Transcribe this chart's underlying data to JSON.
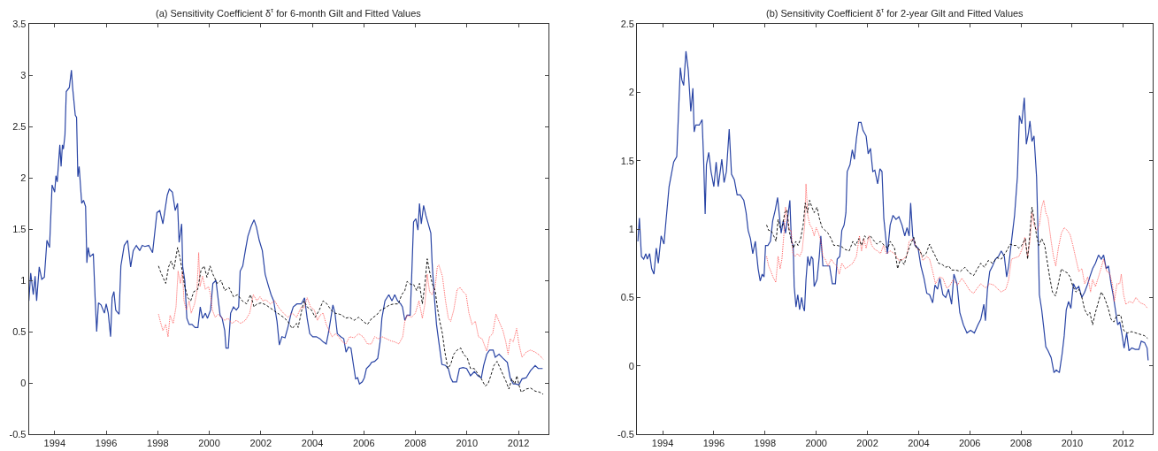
{
  "chart_data": [
    {
      "type": "line",
      "title": "(a) Sensitivity Coefficient δ$^{τ}$ for 6-month Gilt and Fitted Values",
      "xlim": [
        1993,
        2013.15
      ],
      "xticks": [
        1994,
        1996,
        1998,
        2000,
        2002,
        2004,
        2006,
        2008,
        2010,
        2012
      ],
      "ylim": [
        -0.5,
        3.5
      ],
      "yticks": [
        -0.5,
        0,
        0.5,
        1,
        1.5,
        2,
        2.5,
        3,
        3.5
      ],
      "grid": false,
      "series": [
        {
          "color": "#2a45a5",
          "line_style": "solid",
          "x": [
            1993.0,
            1993.07,
            1993.17,
            1993.24,
            1993.3,
            1993.4,
            1993.5,
            1993.6,
            1993.7,
            1993.8,
            1993.9,
            1994.0,
            1994.05,
            1994.1,
            1994.2,
            1994.25,
            1994.3,
            1994.34,
            1994.4,
            1994.45,
            1994.57,
            1994.65,
            1994.7,
            1994.8,
            1994.85,
            1994.9,
            1994.95,
            1995.05,
            1995.12,
            1995.2,
            1995.25,
            1995.3,
            1995.37,
            1995.5,
            1995.57,
            1995.63,
            1995.7,
            1995.8,
            1995.93,
            1996.0,
            1996.08,
            1996.17,
            1996.23,
            1996.3,
            1996.37,
            1996.5,
            1996.57,
            1996.7,
            1996.83,
            1996.95,
            1997.05,
            1997.17,
            1997.3,
            1997.4,
            1997.5,
            1997.65,
            1997.8,
            1997.87,
            1997.97,
            1998.08,
            1998.2,
            1998.37,
            1998.45,
            1998.57,
            1998.68,
            1998.77,
            1998.83,
            1998.88,
            1998.93,
            1998.97,
            1999.05,
            1999.13,
            1999.22,
            1999.33,
            1999.45,
            1999.56,
            1999.65,
            1999.74,
            1999.85,
            1999.93,
            2000.05,
            2000.14,
            2000.26,
            2000.34,
            2000.42,
            2000.5,
            2000.6,
            2000.65,
            2000.74,
            2000.83,
            2000.94,
            2001.05,
            2001.14,
            2001.2,
            2001.3,
            2001.4,
            2001.5,
            2001.63,
            2001.74,
            2001.83,
            2001.94,
            2002.06,
            2002.17,
            2002.28,
            2002.4,
            2002.5,
            2002.63,
            2002.72,
            2002.82,
            2002.94,
            2003.05,
            2003.17,
            2003.26,
            2003.4,
            2003.57,
            2003.7,
            2003.8,
            2003.9,
            2004.02,
            2004.16,
            2004.3,
            2004.42,
            2004.54,
            2004.62,
            2004.7,
            2004.8,
            2004.88,
            2004.97,
            2005.1,
            2005.22,
            2005.31,
            2005.4,
            2005.5,
            2005.6,
            2005.68,
            2005.76,
            2005.83,
            2005.94,
            2006.02,
            2006.1,
            2006.22,
            2006.3,
            2006.42,
            2006.54,
            2006.63,
            2006.7,
            2006.82,
            2006.97,
            2007.09,
            2007.2,
            2007.31,
            2007.43,
            2007.5,
            2007.59,
            2007.68,
            2007.8,
            2007.86,
            2007.93,
            2008.02,
            2008.1,
            2008.16,
            2008.23,
            2008.32,
            2008.41,
            2008.5,
            2008.6,
            2008.65,
            2008.73,
            2008.82,
            2008.91,
            2009.03,
            2009.17,
            2009.28,
            2009.37,
            2009.45,
            2009.6,
            2009.71,
            2009.85,
            2009.99,
            2010.14,
            2010.29,
            2010.42,
            2010.56,
            2010.65,
            2010.77,
            2010.88,
            2011.02,
            2011.1,
            2011.25,
            2011.4,
            2011.57,
            2011.68,
            2011.8,
            2011.9,
            2012.02,
            2012.14,
            2012.3,
            2012.47,
            2012.65,
            2012.77,
            2012.94
          ],
          "values": [
            0.8,
            1.07,
            0.86,
            1.04,
            0.8,
            1.13,
            1.01,
            1.03,
            1.39,
            1.32,
            1.93,
            1.86,
            2.02,
            1.96,
            2.32,
            2.11,
            2.32,
            2.28,
            2.42,
            2.84,
            2.88,
            3.05,
            2.87,
            2.61,
            2.59,
            2.01,
            2.11,
            1.75,
            1.78,
            1.72,
            1.17,
            1.32,
            1.23,
            1.26,
            0.83,
            0.5,
            0.78,
            0.76,
            0.68,
            0.77,
            0.68,
            0.45,
            0.83,
            0.89,
            0.71,
            0.67,
            1.14,
            1.34,
            1.39,
            1.13,
            1.29,
            1.34,
            1.29,
            1.34,
            1.33,
            1.34,
            1.27,
            1.43,
            1.66,
            1.68,
            1.55,
            1.83,
            1.89,
            1.86,
            1.68,
            1.75,
            1.37,
            1.46,
            1.55,
            1.13,
            1.0,
            0.63,
            0.57,
            0.57,
            0.54,
            0.54,
            0.74,
            0.63,
            0.68,
            0.63,
            0.71,
            0.97,
            1.0,
            0.83,
            0.66,
            0.63,
            0.51,
            0.34,
            0.34,
            0.68,
            0.74,
            0.71,
            0.74,
            1.09,
            1.14,
            1.29,
            1.43,
            1.53,
            1.59,
            1.52,
            1.39,
            1.29,
            1.06,
            0.96,
            0.86,
            0.8,
            0.6,
            0.37,
            0.45,
            0.44,
            0.54,
            0.67,
            0.74,
            0.77,
            0.77,
            0.83,
            0.63,
            0.48,
            0.45,
            0.45,
            0.43,
            0.4,
            0.38,
            0.48,
            0.6,
            0.76,
            0.68,
            0.48,
            0.45,
            0.43,
            0.3,
            0.35,
            0.34,
            0.17,
            0.04,
            0.05,
            -0.01,
            0.01,
            0.05,
            0.14,
            0.17,
            0.2,
            0.21,
            0.24,
            0.4,
            0.63,
            0.8,
            0.86,
            0.8,
            0.86,
            0.8,
            0.77,
            0.74,
            0.61,
            0.66,
            0.66,
            1.06,
            1.57,
            1.6,
            1.49,
            1.75,
            1.55,
            1.73,
            1.63,
            1.55,
            1.46,
            1.17,
            0.86,
            0.57,
            0.4,
            0.18,
            0.17,
            0.14,
            0.05,
            0.01,
            0.01,
            0.14,
            0.15,
            0.14,
            0.07,
            0.11,
            0.07,
            0.05,
            0.17,
            0.28,
            0.32,
            0.32,
            0.25,
            0.28,
            0.24,
            0.2,
            0.05,
            -0.01,
            -0.01,
            -0.02,
            0.04,
            0.05,
            0.12,
            0.17,
            0.14,
            0.14
          ]
        },
        {
          "color": "#ff4d4d",
          "line_style": "dotted",
          "x": [
            1998.03,
            1998.1,
            1998.2,
            1998.31,
            1998.4,
            1998.48,
            1998.6,
            1998.71,
            1998.79,
            1998.88,
            1998.96,
            1999.02,
            1999.11,
            1999.22,
            1999.3,
            1999.43,
            1999.52,
            1999.59,
            1999.64,
            1999.74,
            1999.85,
            1999.97,
            2000.05,
            2000.12,
            2000.23,
            2000.35,
            2000.46,
            2000.6,
            2000.73,
            2000.88,
            2001.05,
            2001.22,
            2001.4,
            2001.57,
            2001.71,
            2001.85,
            2001.97,
            2002.08,
            2002.2,
            2002.37,
            2002.54,
            2002.71,
            2002.88,
            2003.05,
            2003.22,
            2003.39,
            2003.57,
            2003.68,
            2003.8,
            2003.93,
            2004.08,
            2004.2,
            2004.3,
            2004.42,
            2004.54,
            2004.65,
            2004.77,
            2004.91,
            2005.05,
            2005.17,
            2005.3,
            2005.45,
            2005.62,
            2005.8,
            2005.97,
            2006.14,
            2006.29,
            2006.42,
            2006.56,
            2006.71,
            2006.88,
            2007.05,
            2007.2,
            2007.36,
            2007.51,
            2007.59,
            2007.68,
            2007.85,
            2008.0,
            2008.14,
            2008.27,
            2008.37,
            2008.46,
            2008.55,
            2008.65,
            2008.77,
            2008.85,
            2008.91,
            2009.05,
            2009.17,
            2009.28,
            2009.37,
            2009.49,
            2009.62,
            2009.74,
            2009.85,
            2009.97,
            2010.08,
            2010.2,
            2010.33,
            2010.45,
            2010.59,
            2010.77,
            2010.88,
            2011.0,
            2011.13,
            2011.28,
            2011.4,
            2011.51,
            2011.6,
            2011.68,
            2011.8,
            2011.93,
            2012.02,
            2012.14,
            2012.3,
            2012.47,
            2012.65,
            2012.82,
            2012.96
          ],
          "values": [
            0.67,
            0.6,
            0.51,
            0.57,
            0.45,
            0.66,
            0.58,
            0.74,
            1.09,
            0.97,
            1.09,
            0.8,
            0.71,
            0.8,
            0.68,
            0.77,
            0.89,
            1.27,
            0.94,
            1.04,
            0.91,
            0.94,
            0.86,
            0.71,
            0.64,
            0.67,
            0.64,
            0.61,
            0.63,
            0.58,
            0.61,
            0.58,
            0.61,
            0.68,
            0.86,
            0.8,
            0.84,
            0.8,
            0.81,
            0.77,
            0.8,
            0.73,
            0.68,
            0.64,
            0.68,
            0.64,
            0.74,
            0.73,
            0.83,
            0.74,
            0.71,
            0.61,
            0.66,
            0.68,
            0.57,
            0.51,
            0.45,
            0.48,
            0.44,
            0.4,
            0.38,
            0.45,
            0.44,
            0.48,
            0.45,
            0.38,
            0.38,
            0.45,
            0.43,
            0.45,
            0.43,
            0.41,
            0.4,
            0.38,
            0.45,
            0.6,
            0.66,
            0.64,
            0.68,
            0.8,
            0.63,
            0.77,
            1.06,
            0.89,
            0.86,
            0.94,
            1.13,
            1.15,
            1.04,
            0.8,
            0.63,
            0.6,
            0.71,
            0.91,
            0.93,
            0.89,
            0.86,
            0.68,
            0.57,
            0.6,
            0.45,
            0.43,
            0.31,
            0.45,
            0.48,
            0.67,
            0.58,
            0.51,
            0.4,
            0.28,
            0.43,
            0.4,
            0.53,
            0.38,
            0.25,
            0.3,
            0.32,
            0.3,
            0.27,
            0.23
          ]
        },
        {
          "color": "#000000",
          "line_style": "dashed",
          "x": [
            1998.03,
            1998.1,
            1998.2,
            1998.31,
            1998.42,
            1998.52,
            1998.63,
            1998.77,
            1998.88,
            1998.97,
            1999.05,
            1999.17,
            1999.28,
            1999.4,
            1999.55,
            1999.68,
            1999.8,
            1999.91,
            2000.03,
            2000.14,
            2000.31,
            2000.46,
            2000.6,
            2000.77,
            2000.94,
            2001.1,
            2001.28,
            2001.45,
            2001.6,
            2001.74,
            2001.85,
            2002.02,
            2002.2,
            2002.37,
            2002.54,
            2002.71,
            2002.88,
            2003.05,
            2003.22,
            2003.39,
            2003.45,
            2003.59,
            2003.68,
            2003.8,
            2003.97,
            2004.11,
            2004.27,
            2004.42,
            2004.57,
            2004.73,
            2004.88,
            2005.05,
            2005.17,
            2005.28,
            2005.45,
            2005.62,
            2005.8,
            2005.97,
            2006.14,
            2006.31,
            2006.49,
            2006.65,
            2006.82,
            2007.0,
            2007.17,
            2007.34,
            2007.47,
            2007.59,
            2007.68,
            2007.82,
            2007.93,
            2008.05,
            2008.16,
            2008.27,
            2008.37,
            2008.46,
            2008.54,
            2008.65,
            2008.77,
            2008.85,
            2008.94,
            2009.05,
            2009.14,
            2009.26,
            2009.37,
            2009.49,
            2009.62,
            2009.76,
            2009.87,
            2010.02,
            2010.14,
            2010.29,
            2010.42,
            2010.56,
            2010.71,
            2010.82,
            2010.94,
            2011.05,
            2011.17,
            2011.28,
            2011.4,
            2011.51,
            2011.63,
            2011.74,
            2011.86,
            2011.94,
            2012.02,
            2012.11,
            2012.3,
            2012.47,
            2012.65,
            2012.82,
            2012.96
          ],
          "values": [
            1.14,
            1.09,
            1.03,
            0.97,
            1.13,
            1.19,
            1.11,
            1.32,
            1.2,
            1.06,
            0.94,
            0.83,
            0.8,
            0.89,
            0.91,
            1.1,
            1.14,
            1.03,
            1.14,
            1.06,
            0.97,
            1.0,
            0.9,
            0.93,
            0.84,
            0.86,
            0.8,
            0.77,
            0.86,
            0.74,
            0.77,
            0.78,
            0.76,
            0.73,
            0.7,
            0.67,
            0.64,
            0.6,
            0.53,
            0.58,
            0.54,
            0.71,
            0.8,
            0.74,
            0.71,
            0.64,
            0.71,
            0.8,
            0.77,
            0.71,
            0.68,
            0.67,
            0.66,
            0.63,
            0.64,
            0.61,
            0.64,
            0.6,
            0.57,
            0.63,
            0.66,
            0.71,
            0.73,
            0.76,
            0.77,
            0.77,
            0.86,
            0.9,
            0.99,
            0.96,
            0.96,
            0.9,
            0.97,
            0.77,
            0.96,
            1.21,
            1.1,
            0.97,
            0.9,
            0.74,
            0.61,
            0.48,
            0.31,
            0.14,
            0.18,
            0.28,
            0.32,
            0.34,
            0.28,
            0.24,
            0.14,
            0.14,
            0.09,
            0.04,
            -0.03,
            -0.01,
            0.08,
            0.17,
            0.21,
            0.15,
            0.08,
            0.02,
            -0.06,
            0.04,
            -0.01,
            0.07,
            -0.02,
            -0.09,
            -0.06,
            -0.05,
            -0.08,
            -0.09,
            -0.11
          ]
        }
      ]
    },
    {
      "type": "line",
      "title": "(b) Sensitivity Coefficient δ$^{τ}$ for 2-year Gilt and Fitted Values",
      "xlim": [
        1993,
        2013.15
      ],
      "xticks": [
        1994,
        1996,
        1998,
        2000,
        2002,
        2004,
        2006,
        2008,
        2010,
        2012
      ],
      "ylim": [
        -0.5,
        2.5
      ],
      "yticks": [
        -0.5,
        0,
        0.5,
        1,
        1.5,
        2,
        2.5
      ],
      "grid": false,
      "series": [
        {
          "color": "#2a45a5",
          "line_style": "solid",
          "x": [
            1993.03,
            1993.09,
            1993.17,
            1993.26,
            1993.34,
            1993.4,
            1993.49,
            1993.57,
            1993.66,
            1993.75,
            1993.83,
            1993.94,
            1994.05,
            1994.13,
            1994.25,
            1994.34,
            1994.43,
            1994.55,
            1994.63,
            1994.69,
            1994.75,
            1994.82,
            1994.91,
            1995.0,
            1995.1,
            1995.18,
            1995.23,
            1995.29,
            1995.43,
            1995.54,
            1995.6,
            1995.66,
            1995.71,
            1995.8,
            1995.89,
            1996.0,
            1996.09,
            1996.17,
            1996.31,
            1996.4,
            1996.49,
            1996.6,
            1996.69,
            1996.8,
            1996.91,
            1997.03,
            1997.17,
            1997.26,
            1997.34,
            1997.43,
            1997.52,
            1997.62,
            1997.73,
            1997.81,
            1997.89,
            1997.96,
            1998.02,
            1998.11,
            1998.21,
            1998.3,
            1998.4,
            1998.49,
            1998.57,
            1998.63,
            1998.71,
            1998.8,
            1998.91,
            1998.97,
            1999.03,
            1999.1,
            1999.14,
            1999.21,
            1999.28,
            1999.35,
            1999.43,
            1999.49,
            1999.54,
            1999.6,
            1999.67,
            1999.74,
            1999.81,
            1999.87,
            1999.92,
            2000.03,
            2000.12,
            2000.18,
            2000.26,
            2000.35,
            2000.52,
            2000.63,
            2000.75,
            2000.82,
            2000.92,
            2001.0,
            2001.09,
            2001.16,
            2001.21,
            2001.32,
            2001.41,
            2001.49,
            2001.57,
            2001.66,
            2001.75,
            2001.83,
            2001.95,
            2002.03,
            2002.12,
            2002.21,
            2002.29,
            2002.4,
            2002.49,
            2002.57,
            2002.64,
            2002.71,
            2002.78,
            2002.89,
            2003.0,
            2003.12,
            2003.23,
            2003.35,
            2003.46,
            2003.55,
            2003.63,
            2003.69,
            2003.77,
            2003.86,
            2003.98,
            2004.09,
            2004.21,
            2004.32,
            2004.43,
            2004.55,
            2004.64,
            2004.74,
            2004.83,
            2004.95,
            2005.06,
            2005.17,
            2005.29,
            2005.38,
            2005.5,
            2005.61,
            2005.75,
            2005.89,
            2006.03,
            2006.18,
            2006.32,
            2006.43,
            2006.55,
            2006.61,
            2006.69,
            2006.78,
            2006.89,
            2007.0,
            2007.12,
            2007.23,
            2007.35,
            2007.44,
            2007.52,
            2007.63,
            2007.75,
            2007.86,
            2007.94,
            2008.03,
            2008.13,
            2008.21,
            2008.29,
            2008.35,
            2008.43,
            2008.51,
            2008.61,
            2008.67,
            2008.72,
            2008.81,
            2008.89,
            2008.97,
            2009.06,
            2009.18,
            2009.29,
            2009.38,
            2009.5,
            2009.61,
            2009.69,
            2009.77,
            2009.86,
            2009.95,
            2010.05,
            2010.15,
            2010.26,
            2010.38,
            2010.49,
            2010.61,
            2010.69,
            2010.8,
            2010.91,
            2011.03,
            2011.14,
            2011.23,
            2011.33,
            2011.42,
            2011.52,
            2011.6,
            2011.69,
            2011.78,
            2011.86,
            2011.94,
            2012.03,
            2012.13,
            2012.22,
            2012.33,
            2012.47,
            2012.61,
            2012.7,
            2012.83,
            2012.93,
            2012.97
          ],
          "values": [
            0.91,
            1.08,
            0.8,
            0.78,
            0.82,
            0.78,
            0.82,
            0.71,
            0.67,
            0.86,
            0.75,
            0.95,
            0.89,
            1.06,
            1.31,
            1.4,
            1.49,
            1.53,
            1.9,
            2.18,
            2.09,
            2.05,
            2.3,
            2.16,
            1.86,
            2.03,
            1.71,
            1.76,
            1.76,
            1.8,
            1.51,
            1.11,
            1.47,
            1.56,
            1.42,
            1.31,
            1.49,
            1.31,
            1.51,
            1.34,
            1.42,
            1.73,
            1.4,
            1.36,
            1.25,
            1.25,
            1.21,
            1.12,
            0.99,
            0.93,
            0.82,
            0.91,
            0.71,
            0.62,
            0.67,
            0.65,
            0.88,
            0.88,
            0.91,
            1.06,
            1.14,
            1.23,
            1.08,
            0.97,
            1.06,
            0.97,
            1.12,
            1.21,
            0.91,
            0.88,
            0.58,
            0.43,
            0.52,
            0.41,
            0.5,
            0.43,
            0.4,
            0.63,
            0.8,
            0.73,
            0.8,
            0.78,
            0.58,
            0.63,
            0.8,
            0.95,
            0.73,
            0.73,
            0.73,
            0.6,
            0.6,
            0.78,
            0.8,
            0.99,
            1.03,
            1.12,
            1.42,
            1.47,
            1.58,
            1.51,
            1.66,
            1.78,
            1.78,
            1.72,
            1.68,
            1.55,
            1.59,
            1.42,
            1.43,
            1.33,
            1.44,
            1.42,
            1.08,
            0.95,
            0.82,
            1.03,
            1.1,
            1.07,
            1.09,
            1.03,
            0.95,
            1.01,
            0.95,
            1.19,
            0.95,
            0.88,
            0.86,
            0.73,
            0.64,
            0.53,
            0.52,
            0.46,
            0.59,
            0.56,
            0.64,
            0.52,
            0.5,
            0.56,
            0.45,
            0.67,
            0.6,
            0.39,
            0.3,
            0.24,
            0.26,
            0.24,
            0.3,
            0.34,
            0.45,
            0.33,
            0.56,
            0.69,
            0.73,
            0.78,
            0.8,
            0.84,
            0.8,
            0.65,
            0.73,
            0.91,
            1.1,
            1.38,
            1.83,
            1.77,
            1.96,
            1.62,
            1.7,
            1.79,
            1.64,
            1.68,
            1.38,
            0.95,
            0.52,
            0.41,
            0.28,
            0.14,
            0.11,
            0.06,
            -0.05,
            -0.03,
            -0.05,
            0.09,
            0.22,
            0.41,
            0.47,
            0.42,
            0.6,
            0.56,
            0.58,
            0.5,
            0.54,
            0.6,
            0.65,
            0.71,
            0.75,
            0.81,
            0.78,
            0.81,
            0.71,
            0.73,
            0.6,
            0.52,
            0.41,
            0.3,
            0.32,
            0.24,
            0.13,
            0.24,
            0.11,
            0.13,
            0.12,
            0.12,
            0.18,
            0.17,
            0.13,
            0.04
          ]
        },
        {
          "color": "#ff4d4d",
          "line_style": "dotted",
          "x": [
            1998.06,
            1998.14,
            1998.23,
            1998.31,
            1998.42,
            1998.51,
            1998.59,
            1998.66,
            1998.74,
            1998.8,
            1998.88,
            1998.95,
            1999.02,
            1999.09,
            1999.17,
            1999.26,
            1999.35,
            1999.45,
            1999.55,
            1999.6,
            1999.67,
            1999.75,
            1999.83,
            1999.92,
            2000.0,
            2000.09,
            2000.18,
            2000.26,
            2000.35,
            2000.46,
            2000.58,
            2000.69,
            2000.8,
            2000.9,
            2001.0,
            2001.14,
            2001.29,
            2001.43,
            2001.57,
            2001.69,
            2001.77,
            2001.86,
            2001.95,
            2002.06,
            2002.17,
            2002.29,
            2002.4,
            2002.51,
            2002.63,
            2002.74,
            2002.89,
            2003.06,
            2003.23,
            2003.41,
            2003.55,
            2003.63,
            2003.78,
            2003.92,
            2004.06,
            2004.17,
            2004.32,
            2004.43,
            2004.55,
            2004.66,
            2004.81,
            2004.95,
            2005.09,
            2005.2,
            2005.35,
            2005.52,
            2005.69,
            2005.84,
            2006.0,
            2006.15,
            2006.3,
            2006.43,
            2006.61,
            2006.78,
            2006.95,
            2007.1,
            2007.23,
            2007.41,
            2007.52,
            2007.63,
            2007.78,
            2007.92,
            2008.06,
            2008.15,
            2008.26,
            2008.35,
            2008.43,
            2008.51,
            2008.61,
            2008.72,
            2008.81,
            2008.89,
            2008.97,
            2009.06,
            2009.18,
            2009.27,
            2009.36,
            2009.46,
            2009.58,
            2009.69,
            2009.81,
            2009.92,
            2010.03,
            2010.15,
            2010.26,
            2010.38,
            2010.49,
            2010.61,
            2010.72,
            2010.8,
            2010.91,
            2011.03,
            2011.14,
            2011.23,
            2011.35,
            2011.46,
            2011.58,
            2011.65,
            2011.75,
            2011.86,
            2011.92,
            2012.01,
            2012.1,
            2012.24,
            2012.38,
            2012.49,
            2012.66,
            2012.81,
            2012.95
          ],
          "values": [
            0.8,
            0.73,
            0.69,
            0.65,
            0.61,
            0.8,
            0.71,
            0.78,
            0.97,
            1.16,
            1.06,
            0.99,
            0.99,
            0.82,
            0.8,
            0.82,
            0.8,
            0.84,
            1.03,
            1.33,
            1.1,
            1.03,
            1.01,
            0.95,
            1.01,
            0.97,
            0.91,
            0.8,
            0.78,
            0.73,
            0.78,
            0.75,
            0.73,
            0.67,
            0.75,
            0.71,
            0.73,
            0.75,
            0.8,
            0.95,
            0.84,
            0.93,
            0.86,
            0.95,
            0.88,
            0.85,
            0.84,
            0.82,
            0.88,
            0.82,
            0.84,
            0.82,
            0.77,
            0.78,
            0.81,
            0.91,
            0.93,
            0.86,
            0.84,
            0.77,
            0.8,
            0.78,
            0.69,
            0.6,
            0.65,
            0.64,
            0.57,
            0.58,
            0.63,
            0.59,
            0.64,
            0.6,
            0.55,
            0.53,
            0.57,
            0.6,
            0.57,
            0.6,
            0.59,
            0.56,
            0.54,
            0.56,
            0.63,
            0.78,
            0.79,
            0.8,
            0.86,
            0.94,
            0.8,
            0.91,
            1.12,
            1.03,
            0.99,
            1.03,
            1.16,
            1.21,
            1.12,
            1.08,
            0.91,
            0.8,
            0.73,
            0.86,
            0.97,
            1.01,
            0.99,
            0.96,
            0.88,
            0.78,
            0.69,
            0.71,
            0.6,
            0.65,
            0.54,
            0.63,
            0.58,
            0.65,
            0.72,
            0.78,
            0.69,
            0.68,
            0.59,
            0.47,
            0.6,
            0.6,
            0.67,
            0.52,
            0.45,
            0.47,
            0.46,
            0.5,
            0.46,
            0.45,
            0.42
          ]
        },
        {
          "color": "#000000",
          "line_style": "dashed",
          "x": [
            1998.06,
            1998.14,
            1998.23,
            1998.34,
            1998.43,
            1998.51,
            1998.59,
            1998.69,
            1998.77,
            1998.86,
            1998.94,
            1999.03,
            1999.11,
            1999.2,
            1999.29,
            1999.39,
            1999.49,
            1999.57,
            1999.66,
            1999.74,
            1999.83,
            1999.92,
            2000.03,
            2000.12,
            2000.23,
            2000.35,
            2000.46,
            2000.58,
            2000.69,
            2000.83,
            2001.0,
            2001.14,
            2001.29,
            2001.43,
            2001.54,
            2001.66,
            2001.77,
            2001.89,
            2002.0,
            2002.11,
            2002.23,
            2002.37,
            2002.51,
            2002.66,
            2002.8,
            2002.89,
            2003.06,
            2003.18,
            2003.29,
            2003.44,
            2003.55,
            2003.67,
            2003.81,
            2003.92,
            2004.03,
            2004.15,
            2004.29,
            2004.43,
            2004.55,
            2004.66,
            2004.78,
            2004.93,
            2005.06,
            2005.18,
            2005.29,
            2005.46,
            2005.63,
            2005.81,
            2005.98,
            2006.15,
            2006.3,
            2006.43,
            2006.57,
            2006.72,
            2006.89,
            2007.06,
            2007.23,
            2007.41,
            2007.58,
            2007.69,
            2007.81,
            2007.92,
            2008.03,
            2008.17,
            2008.26,
            2008.34,
            2008.43,
            2008.51,
            2008.61,
            2008.7,
            2008.81,
            2008.93,
            2009.02,
            2009.12,
            2009.23,
            2009.35,
            2009.46,
            2009.58,
            2009.69,
            2009.81,
            2009.92,
            2010.03,
            2010.15,
            2010.26,
            2010.38,
            2010.49,
            2010.61,
            2010.69,
            2010.8,
            2010.91,
            2011.03,
            2011.14,
            2011.26,
            2011.41,
            2011.52,
            2011.63,
            2011.75,
            2011.9,
            2012.01,
            2012.15,
            2012.32,
            2012.49,
            2012.66,
            2012.83,
            2012.95
          ],
          "values": [
            1.03,
            0.99,
            0.99,
            0.95,
            0.91,
            1.07,
            1.01,
            1.03,
            1.12,
            1.14,
            0.99,
            0.91,
            0.86,
            0.91,
            0.88,
            0.93,
            1.03,
            1.19,
            1.12,
            1.21,
            1.16,
            1.12,
            1.16,
            1.08,
            1.01,
            0.99,
            0.97,
            0.93,
            0.88,
            0.88,
            0.87,
            0.85,
            0.84,
            0.91,
            0.88,
            0.93,
            0.88,
            0.95,
            0.93,
            0.95,
            0.92,
            0.89,
            0.91,
            0.88,
            0.86,
            0.91,
            0.86,
            0.71,
            0.78,
            0.74,
            0.82,
            0.88,
            0.94,
            0.86,
            0.85,
            0.8,
            0.82,
            0.89,
            0.84,
            0.8,
            0.75,
            0.74,
            0.72,
            0.73,
            0.7,
            0.7,
            0.69,
            0.72,
            0.68,
            0.66,
            0.71,
            0.75,
            0.72,
            0.77,
            0.75,
            0.79,
            0.78,
            0.83,
            0.89,
            0.88,
            0.88,
            0.86,
            0.88,
            0.93,
            0.78,
            0.95,
            1.16,
            1.08,
            0.95,
            0.88,
            0.93,
            0.88,
            0.77,
            0.65,
            0.54,
            0.51,
            0.6,
            0.71,
            0.69,
            0.68,
            0.65,
            0.58,
            0.54,
            0.56,
            0.5,
            0.41,
            0.37,
            0.39,
            0.3,
            0.39,
            0.47,
            0.54,
            0.5,
            0.42,
            0.34,
            0.32,
            0.37,
            0.37,
            0.26,
            0.24,
            0.25,
            0.24,
            0.23,
            0.22,
            0.2
          ]
        }
      ]
    }
  ]
}
